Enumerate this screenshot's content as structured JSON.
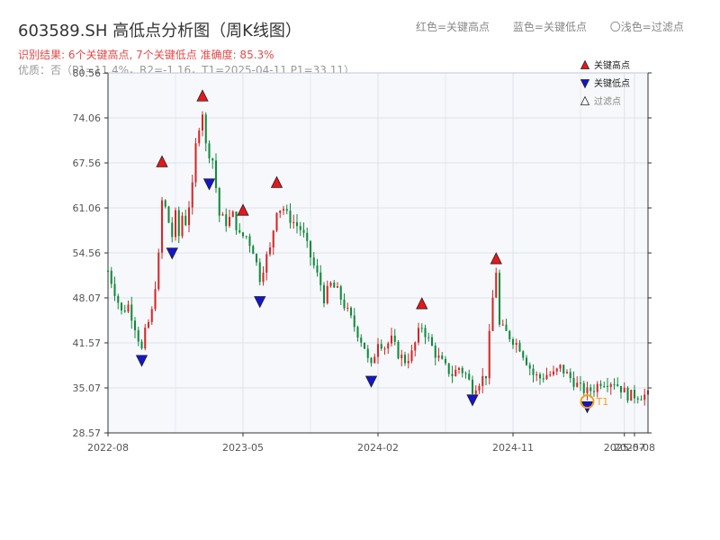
{
  "header": {
    "title": "603589.SH 高低点分析图（周K线图）",
    "result_line": "识别结果: 6个关键高点, 7个关键低点   准确度: 85.3%",
    "quality_line": "优质：否（P1=11.4%，R2=-1.16，T1=2025-04-11 P1=33.11）",
    "legend_red": "红色=关键高点",
    "legend_blue": "蓝色=关键低点",
    "legend_light": "〇浅色=过滤点"
  },
  "colors": {
    "up": "#d62728",
    "down": "#138a3c",
    "high_marker": "#e8161b",
    "low_marker": "#1515cc",
    "t1_marker": "#f0a020",
    "grid": "#dde3ea",
    "plot_bg": "#f6f8fb",
    "axis": "#333333"
  },
  "chart_data": {
    "type": "candlestick",
    "y_ticks": [
      "80.56",
      "74.06",
      "67.56",
      "61.06",
      "54.56",
      "48.07",
      "41.57",
      "35.07",
      "28.57"
    ],
    "x_ticks": [
      "2022-08",
      "2023-05",
      "2024-02",
      "2024-11",
      "2025-07",
      "2025-08"
    ],
    "ylim": [
      28.57,
      80.56
    ],
    "xlim": [
      0,
      160
    ],
    "x_tick_positions": [
      0,
      40,
      80,
      120,
      153,
      156
    ],
    "grid": true,
    "legend": {
      "position": "top-right",
      "entries": [
        "关键高点",
        "关键低点",
        "过滤点"
      ]
    },
    "annotations": [
      {
        "label": "T1",
        "date": "2025-04-11",
        "value": 33.11
      }
    ],
    "key_highs": [
      {
        "x": 16,
        "value": 67.0
      },
      {
        "x": 28,
        "value": 76.5
      },
      {
        "x": 40,
        "value": 60.0
      },
      {
        "x": 50,
        "value": 64.0
      },
      {
        "x": 93,
        "value": 46.5
      },
      {
        "x": 115,
        "value": 53.0
      }
    ],
    "key_lows": [
      {
        "x": 10,
        "value": 39.5
      },
      {
        "x": 19,
        "value": 55.0
      },
      {
        "x": 30,
        "value": 65.0
      },
      {
        "x": 45,
        "value": 48.0
      },
      {
        "x": 78,
        "value": 36.5
      },
      {
        "x": 108,
        "value": 33.8
      },
      {
        "x": 142,
        "value": 32.8
      }
    ],
    "filtered_points": [],
    "anchors": [
      [
        0,
        52
      ],
      [
        2,
        49
      ],
      [
        4,
        46
      ],
      [
        6,
        47
      ],
      [
        8,
        44
      ],
      [
        10,
        40.5
      ],
      [
        11,
        43
      ],
      [
        13,
        46
      ],
      [
        15,
        54
      ],
      [
        16,
        62
      ],
      [
        17,
        61
      ],
      [
        19,
        57
      ],
      [
        20,
        60
      ],
      [
        21,
        57
      ],
      [
        22,
        60
      ],
      [
        23,
        59
      ],
      [
        25,
        64
      ],
      [
        26,
        70
      ],
      [
        27,
        73
      ],
      [
        28,
        75
      ],
      [
        29,
        70
      ],
      [
        30,
        69
      ],
      [
        31,
        68
      ],
      [
        32,
        64
      ],
      [
        33,
        60
      ],
      [
        35,
        59
      ],
      [
        37,
        60
      ],
      [
        39,
        57
      ],
      [
        41,
        57
      ],
      [
        43,
        55
      ],
      [
        45,
        51
      ],
      [
        47,
        54
      ],
      [
        48,
        55
      ],
      [
        50,
        61
      ],
      [
        52,
        61
      ],
      [
        53,
        60
      ],
      [
        55,
        59
      ],
      [
        57,
        58
      ],
      [
        58,
        57
      ],
      [
        60,
        54
      ],
      [
        63,
        50
      ],
      [
        64,
        48
      ],
      [
        66,
        50
      ],
      [
        68,
        49
      ],
      [
        70,
        47
      ],
      [
        72,
        45
      ],
      [
        74,
        43
      ],
      [
        76,
        41
      ],
      [
        77,
        39
      ],
      [
        78,
        38
      ],
      [
        80,
        42
      ],
      [
        82,
        41
      ],
      [
        84,
        42
      ],
      [
        86,
        40
      ],
      [
        88,
        39
      ],
      [
        90,
        40
      ],
      [
        92,
        43
      ],
      [
        93,
        44
      ],
      [
        95,
        42
      ],
      [
        97,
        40
      ],
      [
        100,
        38
      ],
      [
        102,
        37
      ],
      [
        104,
        38
      ],
      [
        106,
        37
      ],
      [
        108,
        35
      ],
      [
        110,
        36
      ],
      [
        112,
        37
      ],
      [
        114,
        48
      ],
      [
        115,
        52
      ],
      [
        116,
        44
      ],
      [
        118,
        43
      ],
      [
        120,
        42
      ],
      [
        122,
        41
      ],
      [
        124,
        39
      ],
      [
        126,
        37
      ],
      [
        128,
        36.5
      ],
      [
        130,
        37
      ],
      [
        132,
        37
      ],
      [
        134,
        38
      ],
      [
        136,
        37
      ],
      [
        138,
        36
      ],
      [
        140,
        35
      ],
      [
        142,
        34.5
      ],
      [
        144,
        35
      ],
      [
        146,
        36
      ],
      [
        148,
        36
      ],
      [
        150,
        36
      ],
      [
        152,
        35
      ],
      [
        154,
        34
      ],
      [
        156,
        34
      ],
      [
        158,
        34
      ],
      [
        160,
        34
      ]
    ]
  }
}
